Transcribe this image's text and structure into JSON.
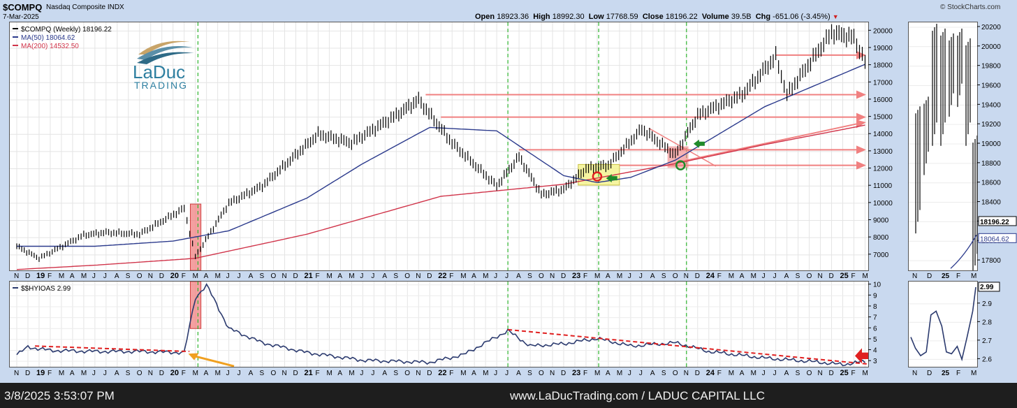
{
  "header": {
    "symbol": "$COMPQ",
    "name": "Nasdaq Composite INDX",
    "date": "7-Mar-2025",
    "brand": "© StockCharts.com",
    "open_label": "Open",
    "open": "18923.36",
    "high_label": "High",
    "high": "18992.30",
    "low_label": "Low",
    "low": "17768.59",
    "close_label": "Close",
    "close": "18196.22",
    "volume_label": "Volume",
    "volume": "39.5B",
    "chg_label": "Chg",
    "chg": "-651.06 (-3.45%)"
  },
  "legend": {
    "price": "$COMPQ (Weekly) 18196.22",
    "ma50": "MA(50) 18064.62",
    "ma200": "MA(200) 14532.50",
    "hyg": "$$HYIOAS 2.99"
  },
  "logo": {
    "line1": "LaDuc",
    "line2": "TRADING"
  },
  "footer": {
    "timestamp": "3/8/2025 3:53:07 PM",
    "credit": "www.LaDucTrading.com / LADUC CAPITAL LLC"
  },
  "colors": {
    "price": "#000000",
    "ma50": "#2b3a8c",
    "ma200": "#d0344a",
    "spread": "#2b3a6e",
    "resistance": "#f08080",
    "highlight_yellow": "#f4f28a",
    "highlight_red": "#f08080",
    "vline": "#2fb52f",
    "arrow_green": "#1f8a2a",
    "arrow_red": "#e02020",
    "arrow_orange": "#f0a020"
  },
  "chart_data": [
    {
      "type": "line",
      "title": "$COMPQ (Weekly)",
      "price_ticks": [
        "20000",
        "19000",
        "18000",
        "17000",
        "16000",
        "15000",
        "14000",
        "13000",
        "12000",
        "11000",
        "10000",
        "9000",
        "8000",
        "7000"
      ],
      "xaxis_labels": [
        "N",
        "D",
        "19",
        "F",
        "M",
        "A",
        "M",
        "J",
        "J",
        "A",
        "S",
        "O",
        "N",
        "D",
        "20",
        "F",
        "M",
        "A",
        "M",
        "J",
        "J",
        "A",
        "S",
        "O",
        "N",
        "D",
        "21",
        "F",
        "M",
        "A",
        "M",
        "J",
        "J",
        "A",
        "S",
        "O",
        "N",
        "D",
        "22",
        "F",
        "M",
        "A",
        "M",
        "J",
        "J",
        "A",
        "S",
        "O",
        "N",
        "D",
        "23",
        "F",
        "M",
        "A",
        "M",
        "J",
        "J",
        "A",
        "S",
        "O",
        "N",
        "D",
        "24",
        "F",
        "M",
        "A",
        "M",
        "J",
        "J",
        "A",
        "S",
        "O",
        "N",
        "D",
        "25",
        "F",
        "M",
        "A"
      ],
      "ylim": [
        6100,
        20500
      ],
      "series": [
        {
          "name": "$COMPQ",
          "x": [
            "2018-11",
            "2019-01",
            "2019-05",
            "2019-07",
            "2019-10",
            "2020-02",
            "2020-03",
            "2020-06",
            "2020-09",
            "2021-02",
            "2021-05",
            "2021-09",
            "2021-11",
            "2022-02",
            "2022-06",
            "2022-08",
            "2022-10",
            "2022-12",
            "2023-02",
            "2023-04",
            "2023-07",
            "2023-10",
            "2023-12",
            "2024-04",
            "2024-07",
            "2024-08",
            "2024-12",
            "2025-02",
            "2025-03"
          ],
          "values": [
            7500,
            6800,
            8150,
            8300,
            8200,
            9700,
            6900,
            10000,
            11000,
            14000,
            13500,
            15100,
            16000,
            13500,
            11000,
            12700,
            10500,
            10800,
            12000,
            12200,
            14300,
            12800,
            15100,
            16300,
            18500,
            16300,
            19900,
            19600,
            18196
          ]
        },
        {
          "name": "MA(50)",
          "x": [
            "2018-11",
            "2019-06",
            "2020-01",
            "2020-06",
            "2021-01",
            "2021-06",
            "2021-12",
            "2022-06",
            "2022-12",
            "2023-03",
            "2023-06",
            "2023-10",
            "2024-06",
            "2025-03"
          ],
          "values": [
            7500,
            7500,
            7800,
            8400,
            10300,
            12300,
            14400,
            14200,
            11600,
            11200,
            11500,
            12500,
            15600,
            18064
          ]
        },
        {
          "name": "MA(200)",
          "x": [
            "2018-11",
            "2019-06",
            "2020-03",
            "2021-01",
            "2022-01",
            "2022-12",
            "2023-10",
            "2024-06",
            "2025-03"
          ],
          "values": [
            6150,
            6400,
            6800,
            8200,
            10400,
            11100,
            12300,
            13400,
            14532
          ]
        }
      ],
      "levels": [
        18600,
        16300,
        15000,
        13100,
        12200
      ]
    },
    {
      "type": "line",
      "title": "$$HYIOAS",
      "yticks": [
        "10",
        "9",
        "8",
        "7",
        "6",
        "5",
        "4",
        "3"
      ],
      "ylim": [
        2.5,
        10.3
      ],
      "series": [
        {
          "name": "$$HYIOAS",
          "x": [
            "2018-11",
            "2018-12",
            "2019-02",
            "2019-06",
            "2019-10",
            "2020-02",
            "2020-03",
            "2020-04",
            "2020-06",
            "2020-09",
            "2021-01",
            "2021-06",
            "2021-12",
            "2022-03",
            "2022-07",
            "2022-09",
            "2022-12",
            "2023-03",
            "2023-06",
            "2023-10",
            "2024-01",
            "2024-06",
            "2024-10",
            "2025-01",
            "2025-03"
          ],
          "values": [
            3.6,
            4.3,
            4.0,
            3.9,
            3.9,
            3.8,
            8.8,
            10.0,
            6.0,
            4.7,
            3.8,
            3.1,
            2.9,
            3.6,
            5.8,
            4.4,
            4.6,
            5.1,
            4.4,
            4.7,
            3.9,
            3.3,
            3.0,
            2.7,
            2.99
          ]
        }
      ]
    },
    {
      "type": "line",
      "title": "$COMPQ daily (zoom)",
      "yticks": [
        "20200",
        "20000",
        "19800",
        "19600",
        "19400",
        "19200",
        "19000",
        "18800",
        "18600",
        "18400",
        "18200",
        "18000",
        "17800"
      ],
      "xaxis_labels": [
        "N",
        "D",
        "25",
        "F",
        "M"
      ],
      "price_label": "18196.22",
      "ma_label": "18064.62",
      "ylim": [
        17700,
        20250
      ]
    },
    {
      "type": "line",
      "title": "$$HYIOAS daily (zoom)",
      "yticks": [
        "2.9",
        "2.8",
        "2.7",
        "2.6"
      ],
      "last_label": "2.99",
      "ylim": [
        2.56,
        3.02
      ],
      "series": [
        {
          "name": "$$HYIOAS",
          "x": [
            "2024-11-01",
            "2024-11-10",
            "2024-11-20",
            "2024-12-01",
            "2024-12-10",
            "2024-12-20",
            "2025-01-01",
            "2025-01-10",
            "2025-01-20",
            "2025-02-01",
            "2025-02-10",
            "2025-02-20",
            "2025-03-01",
            "2025-03-07"
          ],
          "values": [
            2.72,
            2.66,
            2.62,
            2.64,
            2.84,
            2.86,
            2.78,
            2.64,
            2.63,
            2.67,
            2.6,
            2.72,
            2.86,
            2.99
          ]
        }
      ]
    }
  ]
}
